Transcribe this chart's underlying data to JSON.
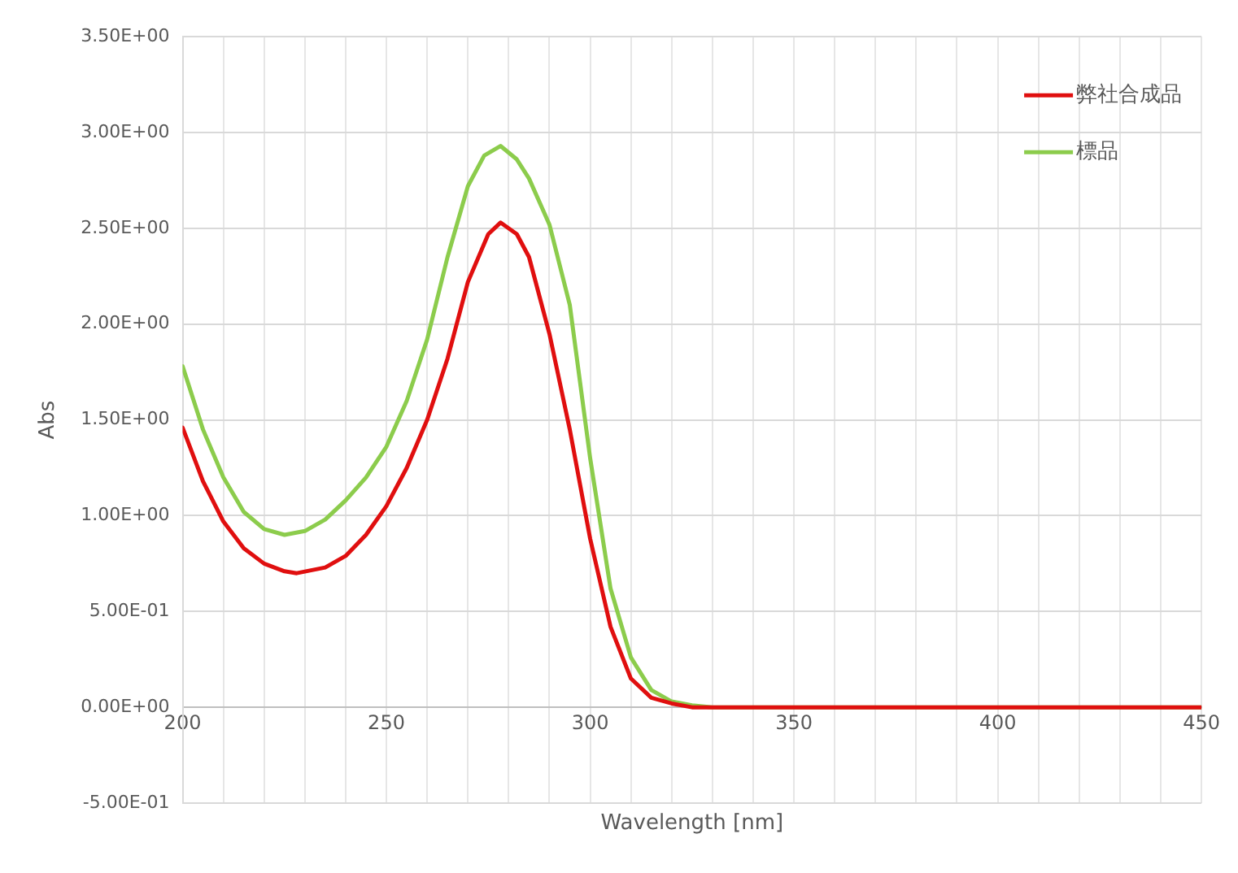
{
  "chart_data": {
    "type": "line",
    "xlabel": "Wavelength [nm]",
    "ylabel": "Abs",
    "series": [
      {
        "name": "弊社合成品",
        "color": "#e00f0f",
        "x": [
          200,
          205,
          210,
          215,
          220,
          225,
          228,
          235,
          240,
          245,
          250,
          255,
          260,
          265,
          270,
          275,
          278,
          282,
          285,
          290,
          295,
          300,
          305,
          310,
          315,
          320,
          325,
          330,
          450
        ],
        "values": [
          1.46,
          1.18,
          0.97,
          0.83,
          0.75,
          0.71,
          0.7,
          0.73,
          0.79,
          0.9,
          1.05,
          1.25,
          1.5,
          1.82,
          2.22,
          2.47,
          2.53,
          2.47,
          2.35,
          1.95,
          1.45,
          0.88,
          0.42,
          0.15,
          0.05,
          0.02,
          0,
          0,
          0
        ]
      },
      {
        "name": "標品",
        "color": "#8ccc4c",
        "x": [
          200,
          205,
          210,
          215,
          220,
          225,
          230,
          235,
          240,
          245,
          250,
          255,
          260,
          265,
          270,
          274,
          278,
          282,
          285,
          290,
          295,
          300,
          305,
          310,
          315,
          320,
          325,
          330,
          340,
          450
        ],
        "values": [
          1.78,
          1.45,
          1.2,
          1.02,
          0.93,
          0.9,
          0.92,
          0.98,
          1.08,
          1.2,
          1.36,
          1.6,
          1.92,
          2.35,
          2.72,
          2.88,
          2.93,
          2.86,
          2.76,
          2.52,
          2.1,
          1.3,
          0.62,
          0.26,
          0.09,
          0.03,
          0.01,
          0,
          0,
          0
        ]
      }
    ],
    "xlim": [
      200,
      450
    ],
    "xticks": [
      200,
      {
        "value": 210,
        "label": null
      },
      {
        "value": 220,
        "label": null
      },
      {
        "value": 230,
        "label": null
      },
      {
        "value": 240,
        "label": null
      },
      250,
      {
        "value": 260,
        "label": null
      },
      {
        "value": 270,
        "label": null
      },
      {
        "value": 280,
        "label": null
      },
      {
        "value": 290,
        "label": null
      },
      300,
      {
        "value": 310,
        "label": null
      },
      {
        "value": 320,
        "label": null
      },
      {
        "value": 330,
        "label": null
      },
      {
        "value": 340,
        "label": null
      },
      350,
      {
        "value": 360,
        "label": null
      },
      {
        "value": 370,
        "label": null
      },
      {
        "value": 380,
        "label": null
      },
      {
        "value": 390,
        "label": null
      },
      400,
      {
        "value": 410,
        "label": null
      },
      {
        "value": 420,
        "label": null
      },
      {
        "value": 430,
        "label": null
      },
      {
        "value": 440,
        "label": null
      },
      450
    ],
    "ylim": [
      -0.5,
      3.5
    ],
    "yticks": [
      {
        "value": -0.5,
        "label": "-5.00E-01"
      },
      {
        "value": 0,
        "label": "0.00E+00"
      },
      {
        "value": 0.5,
        "label": "5.00E-01"
      },
      {
        "value": 1,
        "label": "1.00E+00"
      },
      {
        "value": 1.5,
        "label": "1.50E+00"
      },
      {
        "value": 2,
        "label": "2.00E+00"
      },
      {
        "value": 2.5,
        "label": "2.50E+00"
      },
      {
        "value": 3,
        "label": "3.00E+00"
      },
      {
        "value": 3.5,
        "label": "3.50E+00"
      }
    ],
    "grid": true,
    "legend": "top right",
    "marker": "none",
    "line_style": "solid"
  }
}
